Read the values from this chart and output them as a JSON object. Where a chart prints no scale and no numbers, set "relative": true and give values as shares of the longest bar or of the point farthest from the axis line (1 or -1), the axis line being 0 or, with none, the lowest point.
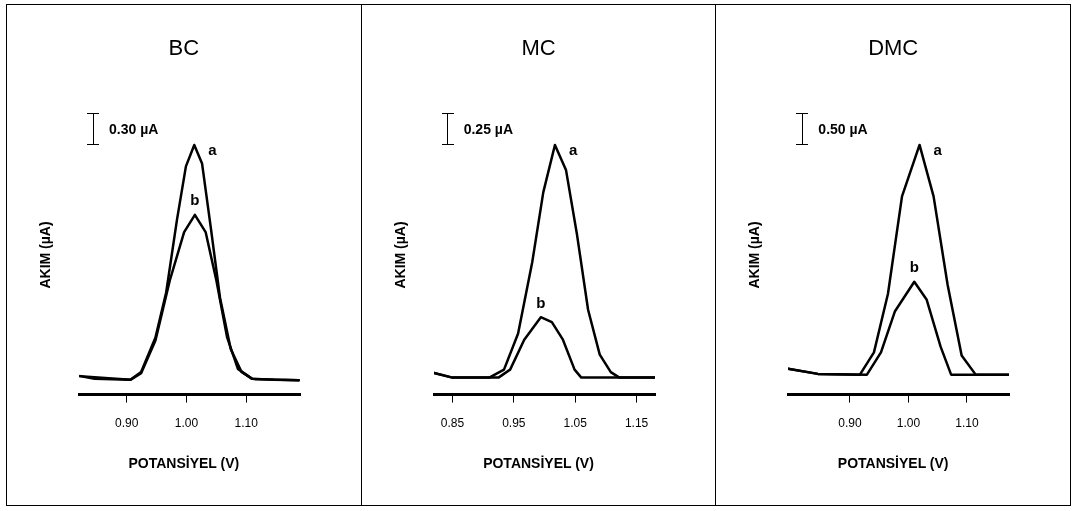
{
  "chart_data": [
    {
      "type": "line",
      "title": "BC",
      "xlabel": "POTANSİYEL (V)",
      "ylabel": "AKIM (µA)",
      "relative": true,
      "annotations": [
        "0.30 µA"
      ],
      "xlim": [
        0.82,
        1.19
      ],
      "xticks": [
        {
          "value": 0.9,
          "label": "0.90"
        },
        {
          "value": 1.0,
          "label": "1.00"
        },
        {
          "value": 1.1,
          "label": "1.10"
        }
      ],
      "grid": false,
      "legend": false,
      "marker": "none",
      "line_style": "solid",
      "series": [
        {
          "name": "a",
          "color": "#000000",
          "x": [
            0.822,
            0.846,
            0.906,
            0.924,
            0.948,
            0.966,
            0.984,
            0.999,
            1.013,
            1.026,
            1.041,
            1.056,
            1.074,
            1.092,
            1.11,
            1.146,
            1.188
          ],
          "values": [
            0.074,
            0.063,
            0.059,
            0.091,
            0.229,
            0.41,
            0.7,
            0.914,
            1.0,
            0.926,
            0.663,
            0.389,
            0.183,
            0.091,
            0.063,
            0.059,
            0.057
          ]
        },
        {
          "name": "b",
          "color": "#000000",
          "x": [
            0.822,
            0.906,
            0.924,
            0.948,
            0.972,
            0.996,
            1.014,
            1.032,
            1.05,
            1.068,
            1.086,
            1.11,
            1.188
          ],
          "values": [
            0.074,
            0.059,
            0.086,
            0.217,
            0.457,
            0.651,
            0.72,
            0.651,
            0.457,
            0.229,
            0.103,
            0.063,
            0.057
          ]
        }
      ]
    },
    {
      "type": "line",
      "title": "MC",
      "xlabel": "POTANSİYEL (V)",
      "ylabel": "AKIM (µA)",
      "relative": true,
      "annotations": [
        "0.25 µA"
      ],
      "xlim": [
        0.82,
        1.18
      ],
      "xticks": [
        0.85,
        0.95,
        1.05,
        1.15
      ],
      "grid": false,
      "legend": false,
      "marker": "none",
      "line_style": "solid",
      "series": [
        {
          "name": "a",
          "color": "#000000",
          "x": [
            0.82,
            0.85,
            0.91,
            0.934,
            0.957,
            0.98,
            0.998,
            1.017,
            1.035,
            1.053,
            1.071,
            1.09,
            1.108,
            1.122,
            1.18
          ],
          "values": [
            0.087,
            0.068,
            0.068,
            0.1,
            0.245,
            0.53,
            0.81,
            1.0,
            0.9,
            0.64,
            0.34,
            0.16,
            0.09,
            0.068,
            0.068
          ]
        },
        {
          "name": "b",
          "color": "#000000",
          "x": [
            0.82,
            0.85,
            0.925,
            0.944,
            0.967,
            0.994,
            1.012,
            1.03,
            1.049,
            1.06,
            1.18
          ],
          "values": [
            0.087,
            0.068,
            0.068,
            0.1,
            0.22,
            0.31,
            0.29,
            0.22,
            0.1,
            0.068,
            0.068
          ]
        }
      ]
    },
    {
      "type": "line",
      "title": "DMC",
      "xlabel": "POTANSİYEL (V)",
      "ylabel": "AKIM (µA)",
      "relative": true,
      "annotations": [
        "0.50 µA"
      ],
      "xlim": [
        0.794,
        1.172
      ],
      "xticks": [
        {
          "value": 0.9,
          "label": "0.90"
        },
        {
          "value": 1.0,
          "label": "1.00"
        },
        {
          "value": 1.1,
          "label": "1.10"
        }
      ],
      "grid": false,
      "legend": false,
      "marker": "none",
      "line_style": "solid",
      "series": [
        {
          "name": "a",
          "color": "#000000",
          "x": [
            0.794,
            0.845,
            0.917,
            0.941,
            0.965,
            0.989,
            1.019,
            1.043,
            1.067,
            1.091,
            1.115,
            1.172
          ],
          "values": [
            0.104,
            0.083,
            0.08,
            0.169,
            0.404,
            0.794,
            1.0,
            0.794,
            0.44,
            0.157,
            0.08,
            0.08
          ]
        },
        {
          "name": "b",
          "color": "#000000",
          "x": [
            0.794,
            0.845,
            0.929,
            0.953,
            0.977,
            1.01,
            1.031,
            1.055,
            1.073,
            1.172
          ],
          "values": [
            0.104,
            0.083,
            0.08,
            0.169,
            0.334,
            0.452,
            0.381,
            0.192,
            0.08,
            0.08
          ]
        }
      ]
    }
  ]
}
